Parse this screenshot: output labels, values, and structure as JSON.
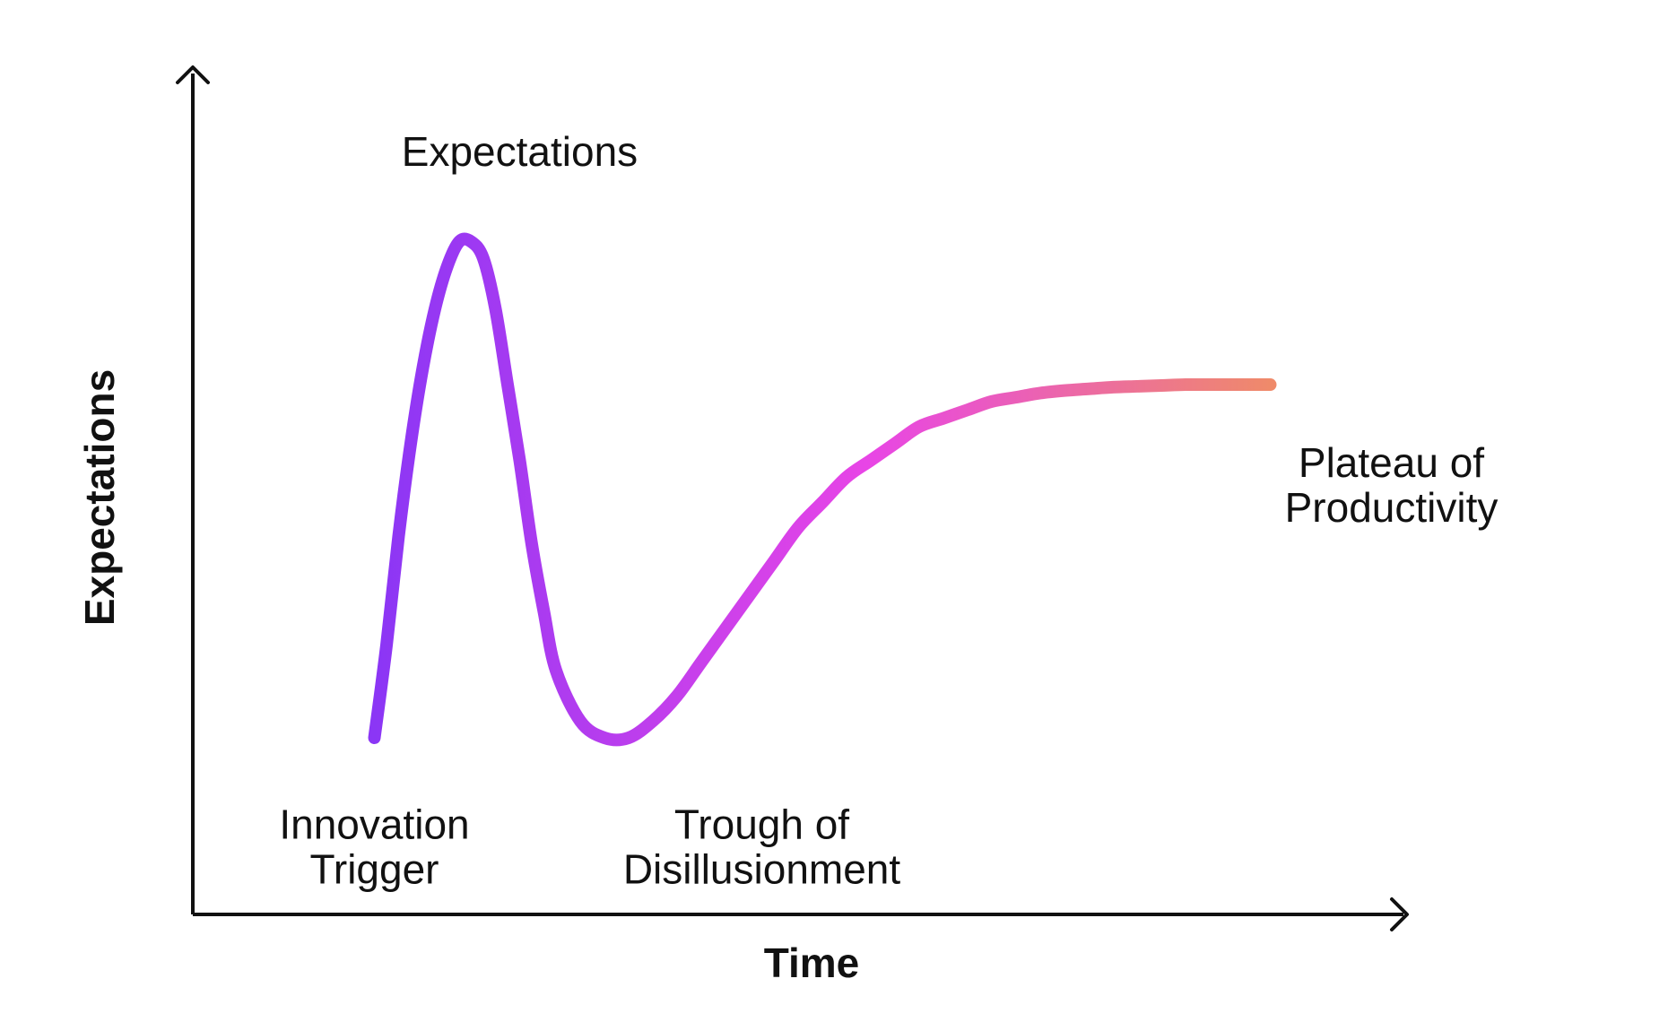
{
  "chart_data": {
    "type": "line",
    "title": "",
    "xlabel": "Time",
    "ylabel": "Expectations",
    "xlim": [
      0,
      100
    ],
    "ylim": [
      0,
      100
    ],
    "grid": false,
    "series": [
      {
        "x": [
          15,
          16,
          17,
          18,
          19,
          20,
          21,
          22,
          23,
          24,
          25,
          26,
          27,
          28,
          29,
          30,
          32,
          34,
          36,
          38,
          40,
          42,
          44,
          46,
          48,
          50,
          52,
          54,
          56,
          58,
          60,
          62,
          64,
          66,
          68,
          70,
          72,
          74,
          76,
          78,
          80,
          82,
          84,
          86,
          88,
          89
        ],
        "y": [
          21,
          32,
          45,
          56,
          65,
          72,
          77,
          80,
          80,
          78,
          72,
          63,
          54,
          44,
          36,
          29,
          23,
          21,
          21,
          23,
          26,
          30,
          34,
          38,
          42,
          46,
          49,
          52,
          54,
          56,
          58,
          59,
          60,
          61,
          61.5,
          62,
          62.3,
          62.5,
          62.7,
          62.8,
          62.9,
          63,
          63,
          63,
          63,
          63
        ],
        "color_start": "#8b36f5",
        "color_mid": "#e845e6",
        "color_end": "#ef8a6a"
      }
    ],
    "annotations": [
      {
        "id": "innovation-trigger",
        "lines": [
          "Innovation",
          "Trigger"
        ],
        "x": 15,
        "y": 9
      },
      {
        "id": "peak",
        "lines": [
          "Expectations"
        ],
        "x": 27,
        "y": 89
      },
      {
        "id": "trough",
        "lines": [
          "Trough of",
          "Disillusionment"
        ],
        "x": 47,
        "y": 9
      },
      {
        "id": "plateau",
        "lines": [
          "Plateau of",
          "Productivity"
        ],
        "x": 99,
        "y": 52
      }
    ]
  },
  "colors": {
    "axis": "#111111",
    "text": "#111111",
    "background": "#ffffff"
  }
}
